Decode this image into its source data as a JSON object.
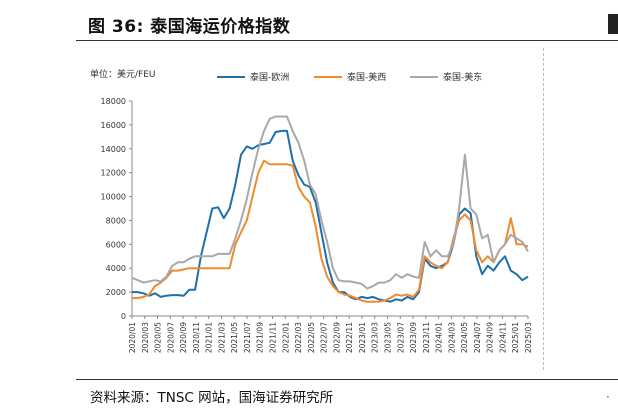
{
  "figure": {
    "title": "图 36:  泰国海运价格指数",
    "unit_label": "单位：美元/FEU",
    "source": "资料来源：TNSC 网站，国海证券研究所"
  },
  "chart_data": {
    "type": "line",
    "title": "",
    "xlabel": "",
    "ylabel": "",
    "ylim": [
      0,
      18000
    ],
    "yticks": [
      0,
      2000,
      4000,
      6000,
      8000,
      10000,
      12000,
      14000,
      16000,
      18000
    ],
    "x_ticks": [
      "2020/01",
      "2020/03",
      "2020/05",
      "2020/07",
      "2020/09",
      "2020/11",
      "2021/01",
      "2021/03",
      "2021/05",
      "2021/07",
      "2021/09",
      "2021/11",
      "2022/01",
      "2022/03",
      "2022/05",
      "2022/07",
      "2022/09",
      "2022/11",
      "2023/01",
      "2023/03",
      "2023/05",
      "2023/07",
      "2023/09",
      "2023/11",
      "2024/01",
      "2024/03",
      "2024/05",
      "2024/07",
      "2024/09",
      "2024/11",
      "2025/01",
      "2025/03"
    ],
    "legend_position": "top",
    "grid": false,
    "series": [
      {
        "name": "泰国-欧洲",
        "color": "#1f6fad",
        "points": [
          [
            0,
            2000
          ],
          [
            1,
            2000
          ],
          [
            2,
            1900
          ],
          [
            3,
            1700
          ],
          [
            4,
            1900
          ],
          [
            5,
            1600
          ],
          [
            6,
            1700
          ],
          [
            7,
            1750
          ],
          [
            8,
            1750
          ],
          [
            9,
            1700
          ],
          [
            10,
            2200
          ],
          [
            11,
            2200
          ],
          [
            12,
            5000
          ],
          [
            13,
            7000
          ],
          [
            14,
            9000
          ],
          [
            15,
            9100
          ],
          [
            16,
            8200
          ],
          [
            17,
            9000
          ],
          [
            18,
            11000
          ],
          [
            19,
            13500
          ],
          [
            20,
            14200
          ],
          [
            21,
            14000
          ],
          [
            22,
            14300
          ],
          [
            23,
            14400
          ],
          [
            24,
            14500
          ],
          [
            25,
            15400
          ],
          [
            26,
            15500
          ],
          [
            27,
            15500
          ],
          [
            28,
            13000
          ],
          [
            29,
            11800
          ],
          [
            30,
            11000
          ],
          [
            31,
            10800
          ],
          [
            32,
            9500
          ],
          [
            33,
            7000
          ],
          [
            34,
            4500
          ],
          [
            35,
            2800
          ],
          [
            36,
            2000
          ],
          [
            37,
            2000
          ],
          [
            38,
            1600
          ],
          [
            39,
            1400
          ],
          [
            40,
            1600
          ],
          [
            41,
            1500
          ],
          [
            42,
            1600
          ],
          [
            43,
            1400
          ],
          [
            44,
            1300
          ],
          [
            45,
            1200
          ],
          [
            46,
            1400
          ],
          [
            47,
            1300
          ],
          [
            48,
            1600
          ],
          [
            49,
            1400
          ],
          [
            50,
            2000
          ],
          [
            51,
            4800
          ],
          [
            52,
            4200
          ],
          [
            53,
            4000
          ],
          [
            54,
            4200
          ],
          [
            55,
            4500
          ],
          [
            56,
            6000
          ],
          [
            57,
            8500
          ],
          [
            58,
            9000
          ],
          [
            59,
            8600
          ],
          [
            60,
            5000
          ],
          [
            61,
            3500
          ],
          [
            62,
            4200
          ],
          [
            63,
            3800
          ],
          [
            64,
            4500
          ],
          [
            65,
            5000
          ],
          [
            66,
            3800
          ],
          [
            67,
            3500
          ],
          [
            68,
            3000
          ],
          [
            69,
            3300
          ]
        ]
      },
      {
        "name": "泰国-美西",
        "color": "#ef8a2f",
        "points": [
          [
            0,
            1500
          ],
          [
            1,
            1500
          ],
          [
            2,
            1600
          ],
          [
            3,
            1800
          ],
          [
            4,
            2500
          ],
          [
            5,
            2800
          ],
          [
            6,
            3200
          ],
          [
            7,
            3800
          ],
          [
            8,
            3800
          ],
          [
            9,
            3900
          ],
          [
            10,
            4000
          ],
          [
            11,
            4000
          ],
          [
            12,
            4000
          ],
          [
            13,
            4000
          ],
          [
            14,
            4000
          ],
          [
            15,
            4000
          ],
          [
            16,
            4000
          ],
          [
            17,
            4000
          ],
          [
            18,
            6000
          ],
          [
            19,
            7000
          ],
          [
            20,
            8000
          ],
          [
            21,
            10000
          ],
          [
            22,
            12000
          ],
          [
            23,
            13000
          ],
          [
            24,
            12700
          ],
          [
            25,
            12700
          ],
          [
            26,
            12700
          ],
          [
            27,
            12700
          ],
          [
            28,
            12600
          ],
          [
            29,
            10800
          ],
          [
            30,
            10000
          ],
          [
            31,
            9500
          ],
          [
            32,
            7500
          ],
          [
            33,
            4800
          ],
          [
            34,
            3300
          ],
          [
            35,
            2500
          ],
          [
            36,
            2000
          ],
          [
            37,
            1800
          ],
          [
            38,
            1700
          ],
          [
            39,
            1500
          ],
          [
            40,
            1300
          ],
          [
            41,
            1200
          ],
          [
            42,
            1200
          ],
          [
            43,
            1200
          ],
          [
            44,
            1300
          ],
          [
            45,
            1500
          ],
          [
            46,
            1800
          ],
          [
            47,
            1700
          ],
          [
            48,
            1800
          ],
          [
            49,
            1600
          ],
          [
            50,
            2200
          ],
          [
            51,
            5000
          ],
          [
            52,
            4500
          ],
          [
            53,
            4200
          ],
          [
            54,
            4000
          ],
          [
            55,
            4500
          ],
          [
            56,
            6500
          ],
          [
            57,
            8000
          ],
          [
            58,
            8500
          ],
          [
            59,
            8000
          ],
          [
            60,
            5500
          ],
          [
            61,
            4500
          ],
          [
            62,
            5000
          ],
          [
            63,
            4500
          ],
          [
            64,
            5500
          ],
          [
            65,
            6000
          ],
          [
            66,
            8200
          ],
          [
            67,
            6000
          ],
          [
            68,
            6000
          ],
          [
            69,
            5800
          ]
        ]
      },
      {
        "name": "泰国-美东",
        "color": "#a8a8a8",
        "points": [
          [
            0,
            3200
          ],
          [
            1,
            3000
          ],
          [
            2,
            2800
          ],
          [
            3,
            2900
          ],
          [
            4,
            3000
          ],
          [
            5,
            2900
          ],
          [
            6,
            3300
          ],
          [
            7,
            4200
          ],
          [
            8,
            4500
          ],
          [
            9,
            4500
          ],
          [
            10,
            4800
          ],
          [
            11,
            5000
          ],
          [
            12,
            5000
          ],
          [
            13,
            5000
          ],
          [
            14,
            5000
          ],
          [
            15,
            5200
          ],
          [
            16,
            5200
          ],
          [
            17,
            5200
          ],
          [
            18,
            6500
          ],
          [
            19,
            8000
          ],
          [
            20,
            9800
          ],
          [
            21,
            12000
          ],
          [
            22,
            14000
          ],
          [
            23,
            15500
          ],
          [
            24,
            16500
          ],
          [
            25,
            16700
          ],
          [
            26,
            16700
          ],
          [
            27,
            16700
          ],
          [
            28,
            15500
          ],
          [
            29,
            14500
          ],
          [
            30,
            13000
          ],
          [
            31,
            11000
          ],
          [
            32,
            10200
          ],
          [
            33,
            8000
          ],
          [
            34,
            6200
          ],
          [
            35,
            4000
          ],
          [
            36,
            3000
          ],
          [
            37,
            2900
          ],
          [
            38,
            2900
          ],
          [
            39,
            2800
          ],
          [
            40,
            2700
          ],
          [
            41,
            2300
          ],
          [
            42,
            2500
          ],
          [
            43,
            2800
          ],
          [
            44,
            2800
          ],
          [
            45,
            3000
          ],
          [
            46,
            3500
          ],
          [
            47,
            3200
          ],
          [
            48,
            3500
          ],
          [
            49,
            3300
          ],
          [
            50,
            3200
          ],
          [
            51,
            6200
          ],
          [
            52,
            5000
          ],
          [
            53,
            5500
          ],
          [
            54,
            5000
          ],
          [
            55,
            5000
          ],
          [
            56,
            6000
          ],
          [
            57,
            9000
          ],
          [
            58,
            13500
          ],
          [
            59,
            9000
          ],
          [
            60,
            8500
          ],
          [
            61,
            6500
          ],
          [
            62,
            6800
          ],
          [
            63,
            4500
          ],
          [
            64,
            5500
          ],
          [
            65,
            6000
          ],
          [
            66,
            6800
          ],
          [
            67,
            6500
          ],
          [
            68,
            6200
          ],
          [
            69,
            5400
          ]
        ]
      }
    ]
  }
}
